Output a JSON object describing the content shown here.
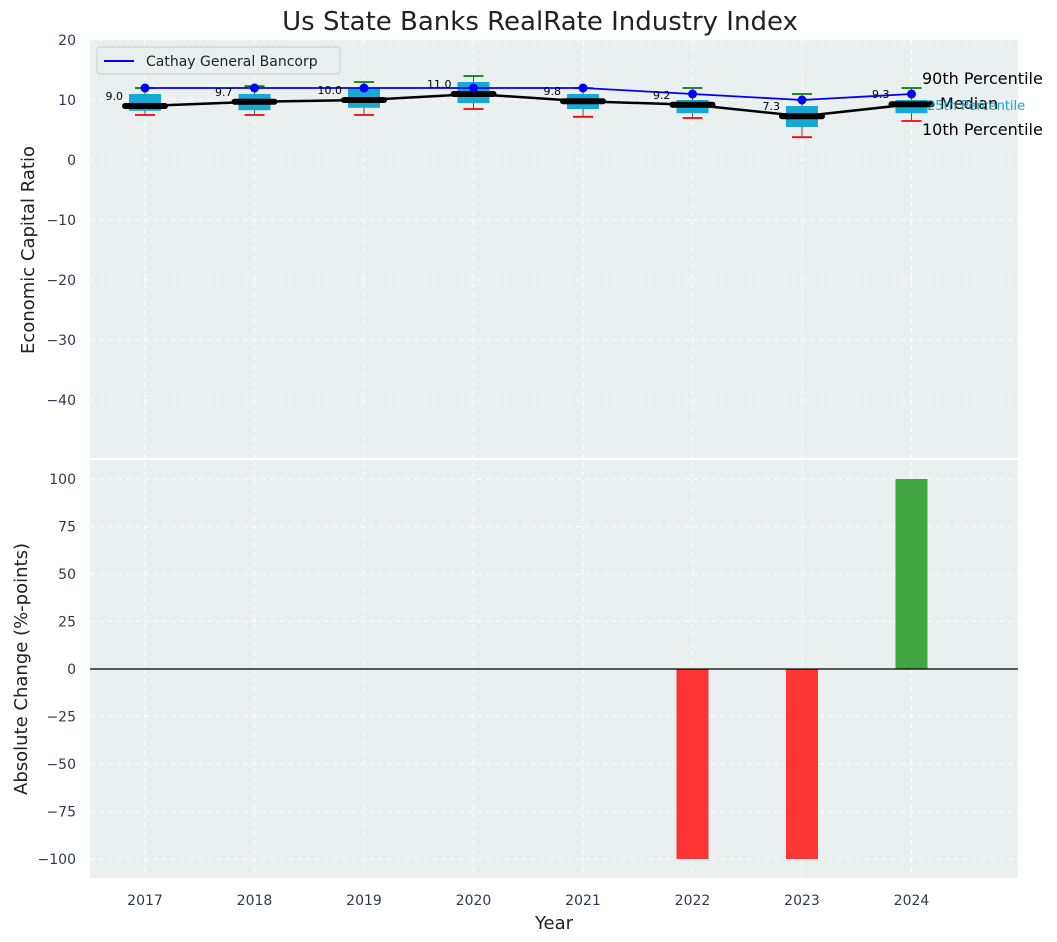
{
  "chart_data": [
    {
      "type": "box",
      "title": "Us State Banks RealRate Industry Index",
      "ylabel": "Economic Capital Ratio",
      "ylim": [
        -50,
        20
      ],
      "yticks": [
        20,
        10,
        0,
        -10,
        -20,
        -30,
        -40
      ],
      "grid": true,
      "categories": [
        "2017",
        "2018",
        "2019",
        "2020",
        "2021",
        "2022",
        "2023",
        "2024"
      ],
      "median": [
        9.0,
        9.7,
        10.0,
        11.0,
        9.8,
        9.2,
        7.3,
        9.3
      ],
      "median_labels": [
        "9.0",
        "9.7",
        "10.0",
        "11.0",
        "9.8",
        "9.2",
        "7.3",
        "9.3"
      ],
      "p25": [
        8.2,
        8.3,
        8.7,
        9.5,
        8.5,
        7.8,
        5.5,
        7.8
      ],
      "p75": [
        11.0,
        11.0,
        12.0,
        13.0,
        11.0,
        10.0,
        9.0,
        10.0
      ],
      "p10": [
        7.5,
        7.5,
        7.5,
        8.5,
        7.2,
        7.0,
        3.8,
        6.5
      ],
      "p90": [
        12.0,
        12.3,
        13.0,
        14.0,
        12.0,
        12.0,
        11.0,
        12.0
      ],
      "series": [
        {
          "name": "Cathay General Bancorp",
          "values": [
            12.0,
            12.0,
            12.0,
            12.0,
            12.0,
            11.0,
            10.0,
            11.0
          ],
          "color": "#0000ff"
        }
      ],
      "median_line_color": "#000000",
      "box_color": "#17a8d4",
      "p90_color": "#008000",
      "p10_color": "#ff0000",
      "legend": {
        "placement": "top-left",
        "entries": [
          "Cathay General Bancorp"
        ]
      },
      "side_labels": {
        "p90": "90th Percentile",
        "median": "Median",
        "p25": "25th Percentile",
        "p10": "10th Percentile"
      }
    },
    {
      "type": "bar",
      "ylabel": "Absolute Change (%-points)",
      "xlabel": "Year",
      "ylim": [
        -110,
        110
      ],
      "yticks": [
        100,
        75,
        50,
        25,
        0,
        -25,
        -50,
        -75,
        -100
      ],
      "grid": true,
      "categories": [
        "2017",
        "2018",
        "2019",
        "2020",
        "2021",
        "2022",
        "2023",
        "2024"
      ],
      "values": [
        0,
        0,
        0,
        0,
        0,
        -100,
        -100,
        100
      ],
      "positive_color": "#2ca02c",
      "negative_color": "#ff2020"
    }
  ]
}
